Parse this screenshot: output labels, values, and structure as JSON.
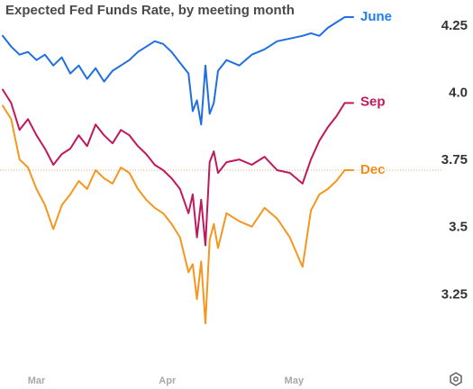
{
  "chart_data": {
    "type": "line",
    "title": "Expected Fed Funds Rate, by meeting month",
    "xlabel": "",
    "ylabel": "",
    "x_ticks": [
      "Mar",
      "Apr",
      "May"
    ],
    "y_ticks": [
      3.25,
      3.5,
      3.75,
      4.0,
      4.25
    ],
    "y_tick_labels": [
      "3.25",
      "3.5",
      "3.75",
      "4.0",
      "4.25"
    ],
    "ylim": [
      3.1,
      4.3
    ],
    "x_domain": [
      "2023-02-21",
      "2023-05-15"
    ],
    "grid": false,
    "legend": "end-of-line labels on right",
    "reference_line": {
      "y": 3.71,
      "color": "#f4a872",
      "style": "dotted"
    },
    "series": [
      {
        "name": "June",
        "color": "#1f6fe0",
        "label_color": "#1f7fe6",
        "points": [
          [
            "2023-02-21",
            4.21
          ],
          [
            "2023-02-23",
            4.17
          ],
          [
            "2023-02-25",
            4.14
          ],
          [
            "2023-02-27",
            4.15
          ],
          [
            "2023-03-01",
            4.12
          ],
          [
            "2023-03-03",
            4.14
          ],
          [
            "2023-03-05",
            4.1
          ],
          [
            "2023-03-07",
            4.13
          ],
          [
            "2023-03-09",
            4.07
          ],
          [
            "2023-03-11",
            4.1
          ],
          [
            "2023-03-13",
            4.05
          ],
          [
            "2023-03-15",
            4.09
          ],
          [
            "2023-03-17",
            4.04
          ],
          [
            "2023-03-19",
            4.08
          ],
          [
            "2023-03-21",
            4.1
          ],
          [
            "2023-03-23",
            4.12
          ],
          [
            "2023-03-25",
            4.15
          ],
          [
            "2023-03-27",
            4.17
          ],
          [
            "2023-03-29",
            4.19
          ],
          [
            "2023-03-31",
            4.18
          ],
          [
            "2023-04-02",
            4.15
          ],
          [
            "2023-04-04",
            4.11
          ],
          [
            "2023-04-06",
            4.07
          ],
          [
            "2023-04-07",
            3.93
          ],
          [
            "2023-04-08",
            3.97
          ],
          [
            "2023-04-09",
            3.88
          ],
          [
            "2023-04-10",
            4.1
          ],
          [
            "2023-04-11",
            3.92
          ],
          [
            "2023-04-12",
            3.96
          ],
          [
            "2023-04-13",
            4.08
          ],
          [
            "2023-04-15",
            4.12
          ],
          [
            "2023-04-18",
            4.1
          ],
          [
            "2023-04-21",
            4.14
          ],
          [
            "2023-04-24",
            4.16
          ],
          [
            "2023-04-27",
            4.19
          ],
          [
            "2023-04-30",
            4.2
          ],
          [
            "2023-05-03",
            4.21
          ],
          [
            "2023-05-05",
            4.22
          ],
          [
            "2023-05-07",
            4.21
          ],
          [
            "2023-05-09",
            4.24
          ],
          [
            "2023-05-11",
            4.26
          ],
          [
            "2023-05-13",
            4.28
          ],
          [
            "2023-05-15",
            4.28
          ]
        ]
      },
      {
        "name": "Sep",
        "color": "#c0185c",
        "label_color": "#c0185c",
        "points": [
          [
            "2023-02-21",
            4.01
          ],
          [
            "2023-02-23",
            3.96
          ],
          [
            "2023-02-25",
            3.86
          ],
          [
            "2023-02-27",
            3.9
          ],
          [
            "2023-03-01",
            3.84
          ],
          [
            "2023-03-03",
            3.79
          ],
          [
            "2023-03-05",
            3.73
          ],
          [
            "2023-03-07",
            3.77
          ],
          [
            "2023-03-09",
            3.79
          ],
          [
            "2023-03-11",
            3.84
          ],
          [
            "2023-03-13",
            3.8
          ],
          [
            "2023-03-15",
            3.88
          ],
          [
            "2023-03-17",
            3.84
          ],
          [
            "2023-03-19",
            3.81
          ],
          [
            "2023-03-21",
            3.86
          ],
          [
            "2023-03-23",
            3.84
          ],
          [
            "2023-03-25",
            3.8
          ],
          [
            "2023-03-27",
            3.77
          ],
          [
            "2023-03-29",
            3.73
          ],
          [
            "2023-03-31",
            3.71
          ],
          [
            "2023-04-02",
            3.68
          ],
          [
            "2023-04-04",
            3.64
          ],
          [
            "2023-04-06",
            3.55
          ],
          [
            "2023-04-07",
            3.62
          ],
          [
            "2023-04-08",
            3.46
          ],
          [
            "2023-04-09",
            3.6
          ],
          [
            "2023-04-10",
            3.43
          ],
          [
            "2023-04-11",
            3.74
          ],
          [
            "2023-04-12",
            3.78
          ],
          [
            "2023-04-13",
            3.7
          ],
          [
            "2023-04-15",
            3.74
          ],
          [
            "2023-04-18",
            3.75
          ],
          [
            "2023-04-21",
            3.73
          ],
          [
            "2023-04-24",
            3.76
          ],
          [
            "2023-04-27",
            3.71
          ],
          [
            "2023-04-30",
            3.7
          ],
          [
            "2023-05-03",
            3.66
          ],
          [
            "2023-05-05",
            3.75
          ],
          [
            "2023-05-07",
            3.82
          ],
          [
            "2023-05-09",
            3.87
          ],
          [
            "2023-05-11",
            3.91
          ],
          [
            "2023-05-13",
            3.96
          ],
          [
            "2023-05-15",
            3.96
          ]
        ]
      },
      {
        "name": "Dec",
        "color": "#f5961f",
        "label_color": "#f08a1c",
        "points": [
          [
            "2023-02-21",
            3.95
          ],
          [
            "2023-02-23",
            3.9
          ],
          [
            "2023-02-25",
            3.75
          ],
          [
            "2023-02-27",
            3.72
          ],
          [
            "2023-03-01",
            3.64
          ],
          [
            "2023-03-03",
            3.58
          ],
          [
            "2023-03-05",
            3.49
          ],
          [
            "2023-03-07",
            3.58
          ],
          [
            "2023-03-09",
            3.62
          ],
          [
            "2023-03-11",
            3.67
          ],
          [
            "2023-03-13",
            3.64
          ],
          [
            "2023-03-15",
            3.71
          ],
          [
            "2023-03-17",
            3.68
          ],
          [
            "2023-03-19",
            3.66
          ],
          [
            "2023-03-21",
            3.72
          ],
          [
            "2023-03-23",
            3.7
          ],
          [
            "2023-03-25",
            3.64
          ],
          [
            "2023-03-27",
            3.6
          ],
          [
            "2023-03-29",
            3.57
          ],
          [
            "2023-03-31",
            3.55
          ],
          [
            "2023-04-02",
            3.51
          ],
          [
            "2023-04-04",
            3.46
          ],
          [
            "2023-04-06",
            3.33
          ],
          [
            "2023-04-07",
            3.36
          ],
          [
            "2023-04-08",
            3.23
          ],
          [
            "2023-04-09",
            3.37
          ],
          [
            "2023-04-10",
            3.14
          ],
          [
            "2023-04-11",
            3.45
          ],
          [
            "2023-04-12",
            3.51
          ],
          [
            "2023-04-13",
            3.42
          ],
          [
            "2023-04-15",
            3.55
          ],
          [
            "2023-04-18",
            3.52
          ],
          [
            "2023-04-21",
            3.5
          ],
          [
            "2023-04-24",
            3.57
          ],
          [
            "2023-04-27",
            3.53
          ],
          [
            "2023-04-30",
            3.46
          ],
          [
            "2023-05-03",
            3.35
          ],
          [
            "2023-05-05",
            3.56
          ],
          [
            "2023-05-07",
            3.62
          ],
          [
            "2023-05-09",
            3.64
          ],
          [
            "2023-05-11",
            3.67
          ],
          [
            "2023-05-13",
            3.71
          ],
          [
            "2023-05-15",
            3.71
          ]
        ]
      }
    ]
  },
  "icons": {
    "corner": "settings-hexagon-icon"
  }
}
